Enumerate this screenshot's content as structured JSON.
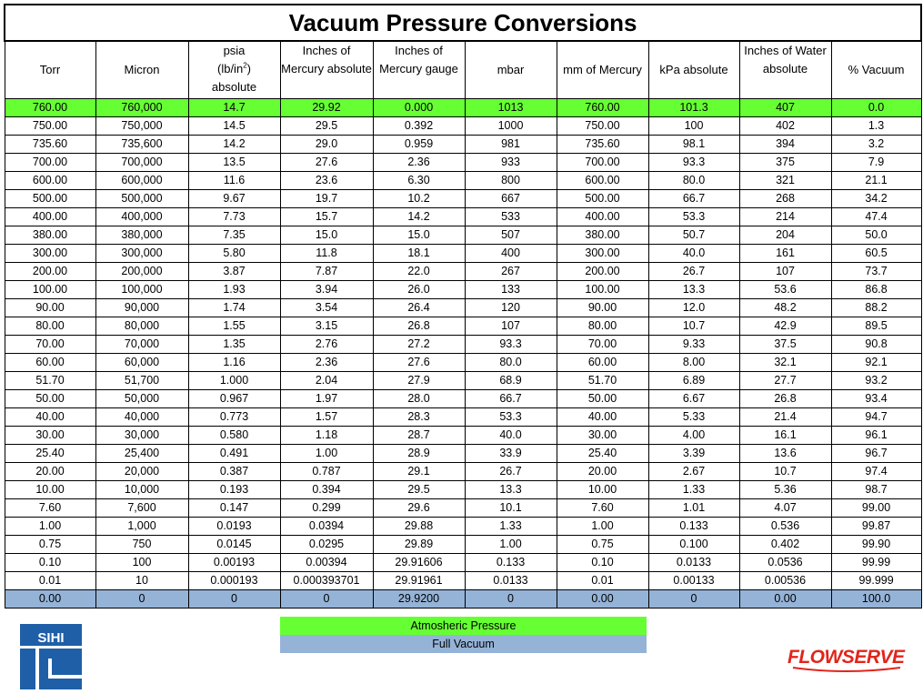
{
  "title": "Vacuum Pressure Conversions",
  "headers": [
    {
      "text": "Torr"
    },
    {
      "text": "Micron"
    },
    {
      "pre": "psia",
      "mid": "(lb/in",
      "sup": "2",
      "post": ")",
      "last": "absolute"
    },
    {
      "text": "Inches of Mercury absolute"
    },
    {
      "text": "Inches of Mercury gauge"
    },
    {
      "text": "mbar"
    },
    {
      "text": "mm of Mercury"
    },
    {
      "text": "kPa absolute"
    },
    {
      "text": "Inches of Water absolute"
    },
    {
      "text": "% Vacuum"
    }
  ],
  "rows": [
    [
      "760.00",
      "760,000",
      "14.7",
      "29.92",
      "0.000",
      "1013",
      "760.00",
      "101.3",
      "407",
      "0.0"
    ],
    [
      "750.00",
      "750,000",
      "14.5",
      "29.5",
      "0.392",
      "1000",
      "750.00",
      "100",
      "402",
      "1.3"
    ],
    [
      "735.60",
      "735,600",
      "14.2",
      "29.0",
      "0.959",
      "981",
      "735.60",
      "98.1",
      "394",
      "3.2"
    ],
    [
      "700.00",
      "700,000",
      "13.5",
      "27.6",
      "2.36",
      "933",
      "700.00",
      "93.3",
      "375",
      "7.9"
    ],
    [
      "600.00",
      "600,000",
      "11.6",
      "23.6",
      "6.30",
      "800",
      "600.00",
      "80.0",
      "321",
      "21.1"
    ],
    [
      "500.00",
      "500,000",
      "9.67",
      "19.7",
      "10.2",
      "667",
      "500.00",
      "66.7",
      "268",
      "34.2"
    ],
    [
      "400.00",
      "400,000",
      "7.73",
      "15.7",
      "14.2",
      "533",
      "400.00",
      "53.3",
      "214",
      "47.4"
    ],
    [
      "380.00",
      "380,000",
      "7.35",
      "15.0",
      "15.0",
      "507",
      "380.00",
      "50.7",
      "204",
      "50.0"
    ],
    [
      "300.00",
      "300,000",
      "5.80",
      "11.8",
      "18.1",
      "400",
      "300.00",
      "40.0",
      "161",
      "60.5"
    ],
    [
      "200.00",
      "200,000",
      "3.87",
      "7.87",
      "22.0",
      "267",
      "200.00",
      "26.7",
      "107",
      "73.7"
    ],
    [
      "100.00",
      "100,000",
      "1.93",
      "3.94",
      "26.0",
      "133",
      "100.00",
      "13.3",
      "53.6",
      "86.8"
    ],
    [
      "90.00",
      "90,000",
      "1.74",
      "3.54",
      "26.4",
      "120",
      "90.00",
      "12.0",
      "48.2",
      "88.2"
    ],
    [
      "80.00",
      "80,000",
      "1.55",
      "3.15",
      "26.8",
      "107",
      "80.00",
      "10.7",
      "42.9",
      "89.5"
    ],
    [
      "70.00",
      "70,000",
      "1.35",
      "2.76",
      "27.2",
      "93.3",
      "70.00",
      "9.33",
      "37.5",
      "90.8"
    ],
    [
      "60.00",
      "60,000",
      "1.16",
      "2.36",
      "27.6",
      "80.0",
      "60.00",
      "8.00",
      "32.1",
      "92.1"
    ],
    [
      "51.70",
      "51,700",
      "1.000",
      "2.04",
      "27.9",
      "68.9",
      "51.70",
      "6.89",
      "27.7",
      "93.2"
    ],
    [
      "50.00",
      "50,000",
      "0.967",
      "1.97",
      "28.0",
      "66.7",
      "50.00",
      "6.67",
      "26.8",
      "93.4"
    ],
    [
      "40.00",
      "40,000",
      "0.773",
      "1.57",
      "28.3",
      "53.3",
      "40.00",
      "5.33",
      "21.4",
      "94.7"
    ],
    [
      "30.00",
      "30,000",
      "0.580",
      "1.18",
      "28.7",
      "40.0",
      "30.00",
      "4.00",
      "16.1",
      "96.1"
    ],
    [
      "25.40",
      "25,400",
      "0.491",
      "1.00",
      "28.9",
      "33.9",
      "25.40",
      "3.39",
      "13.6",
      "96.7"
    ],
    [
      "20.00",
      "20,000",
      "0.387",
      "0.787",
      "29.1",
      "26.7",
      "20.00",
      "2.67",
      "10.7",
      "97.4"
    ],
    [
      "10.00",
      "10,000",
      "0.193",
      "0.394",
      "29.5",
      "13.3",
      "10.00",
      "1.33",
      "5.36",
      "98.7"
    ],
    [
      "7.60",
      "7,600",
      "0.147",
      "0.299",
      "29.6",
      "10.1",
      "7.60",
      "1.01",
      "4.07",
      "99.00"
    ],
    [
      "1.00",
      "1,000",
      "0.0193",
      "0.0394",
      "29.88",
      "1.33",
      "1.00",
      "0.133",
      "0.536",
      "99.87"
    ],
    [
      "0.75",
      "750",
      "0.0145",
      "0.0295",
      "29.89",
      "1.00",
      "0.75",
      "0.100",
      "0.402",
      "99.90"
    ],
    [
      "0.10",
      "100",
      "0.00193",
      "0.00394",
      "29.91606",
      "0.133",
      "0.10",
      "0.0133",
      "0.0536",
      "99.99"
    ],
    [
      "0.01",
      "10",
      "0.000193",
      "0.000393701",
      "29.91961",
      "0.0133",
      "0.01",
      "0.00133",
      "0.00536",
      "99.999"
    ],
    [
      "0.00",
      "0",
      "0",
      "0",
      "29.9200",
      "0",
      "0.00",
      "0",
      "0.00",
      "100.0"
    ]
  ],
  "legend": {
    "atmospheric": "Atmosheric Pressure",
    "vacuum": "Full Vacuum"
  },
  "logos": {
    "left": "SIHI",
    "right": "FLOWSERVE"
  },
  "colors": {
    "atmospheric": "#66ff33",
    "vacuum": "#95b3d7",
    "sihi_blue": "#1f5fa8",
    "flowserve_red": "#e1251b"
  }
}
